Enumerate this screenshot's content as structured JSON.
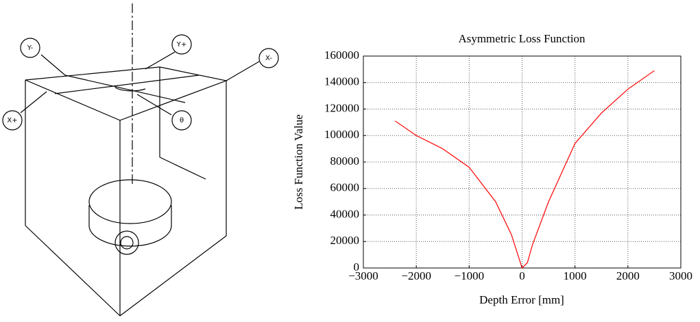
{
  "diagram": {
    "labels": [
      "Y-",
      "Y+",
      "X-",
      "X+",
      "θ"
    ]
  },
  "chart_data": {
    "type": "line",
    "title": "Asymmetric Loss Function",
    "x_label": "Depth Error [mm]",
    "y_label": "Loss Function Value",
    "x": [
      -2400,
      -2000,
      -1500,
      -1000,
      -500,
      -200,
      0,
      100,
      200,
      500,
      1000,
      1500,
      2000,
      2500
    ],
    "series": [
      {
        "color": "#ff0000",
        "values": [
          111000,
          100000,
          90000,
          76000,
          50000,
          25000,
          0,
          4000,
          18000,
          50000,
          94000,
          117000,
          135000,
          149000
        ]
      }
    ],
    "xlim": [
      -3000,
      3000
    ],
    "xticks": [
      {
        "value": -3000,
        "label": "−3000"
      },
      {
        "value": -2000,
        "label": "−2000"
      },
      {
        "value": -1000,
        "label": "−1000"
      },
      0,
      1000,
      2000,
      3000
    ],
    "ylim": [
      0,
      160000
    ],
    "yticks": [
      0,
      20000,
      40000,
      60000,
      80000,
      100000,
      120000,
      140000,
      160000
    ],
    "grid": true
  }
}
